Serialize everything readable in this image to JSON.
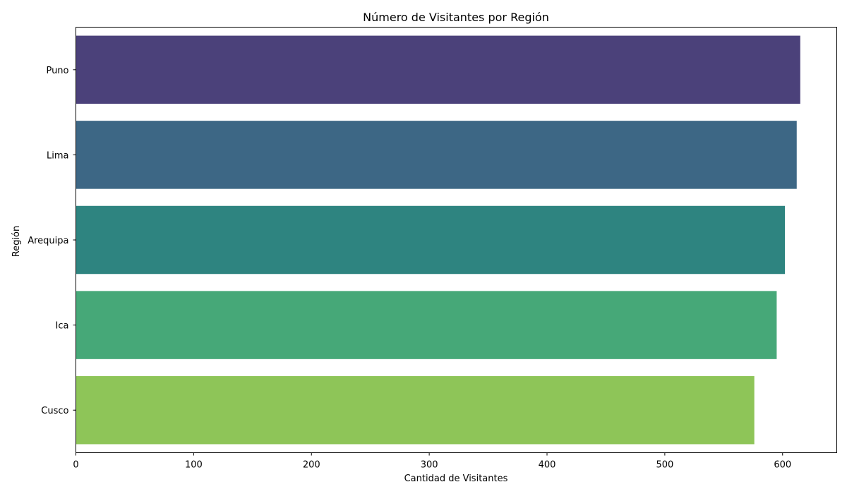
{
  "chart_data": {
    "type": "bar",
    "orientation": "horizontal",
    "title": "Número de Visitantes por Región",
    "xlabel": "Cantidad de Visitantes",
    "ylabel": "Región",
    "categories": [
      "Puno",
      "Lima",
      "Arequipa",
      "Ica",
      "Cusco"
    ],
    "values": [
      615,
      612,
      602,
      595,
      576
    ],
    "colors": [
      "#4b417a",
      "#3d6785",
      "#2e8480",
      "#46a878",
      "#8ec558"
    ],
    "xlim": [
      0,
      646
    ],
    "xticks": [
      0,
      100,
      200,
      300,
      400,
      500,
      600
    ],
    "grid": false,
    "legend": "none"
  }
}
